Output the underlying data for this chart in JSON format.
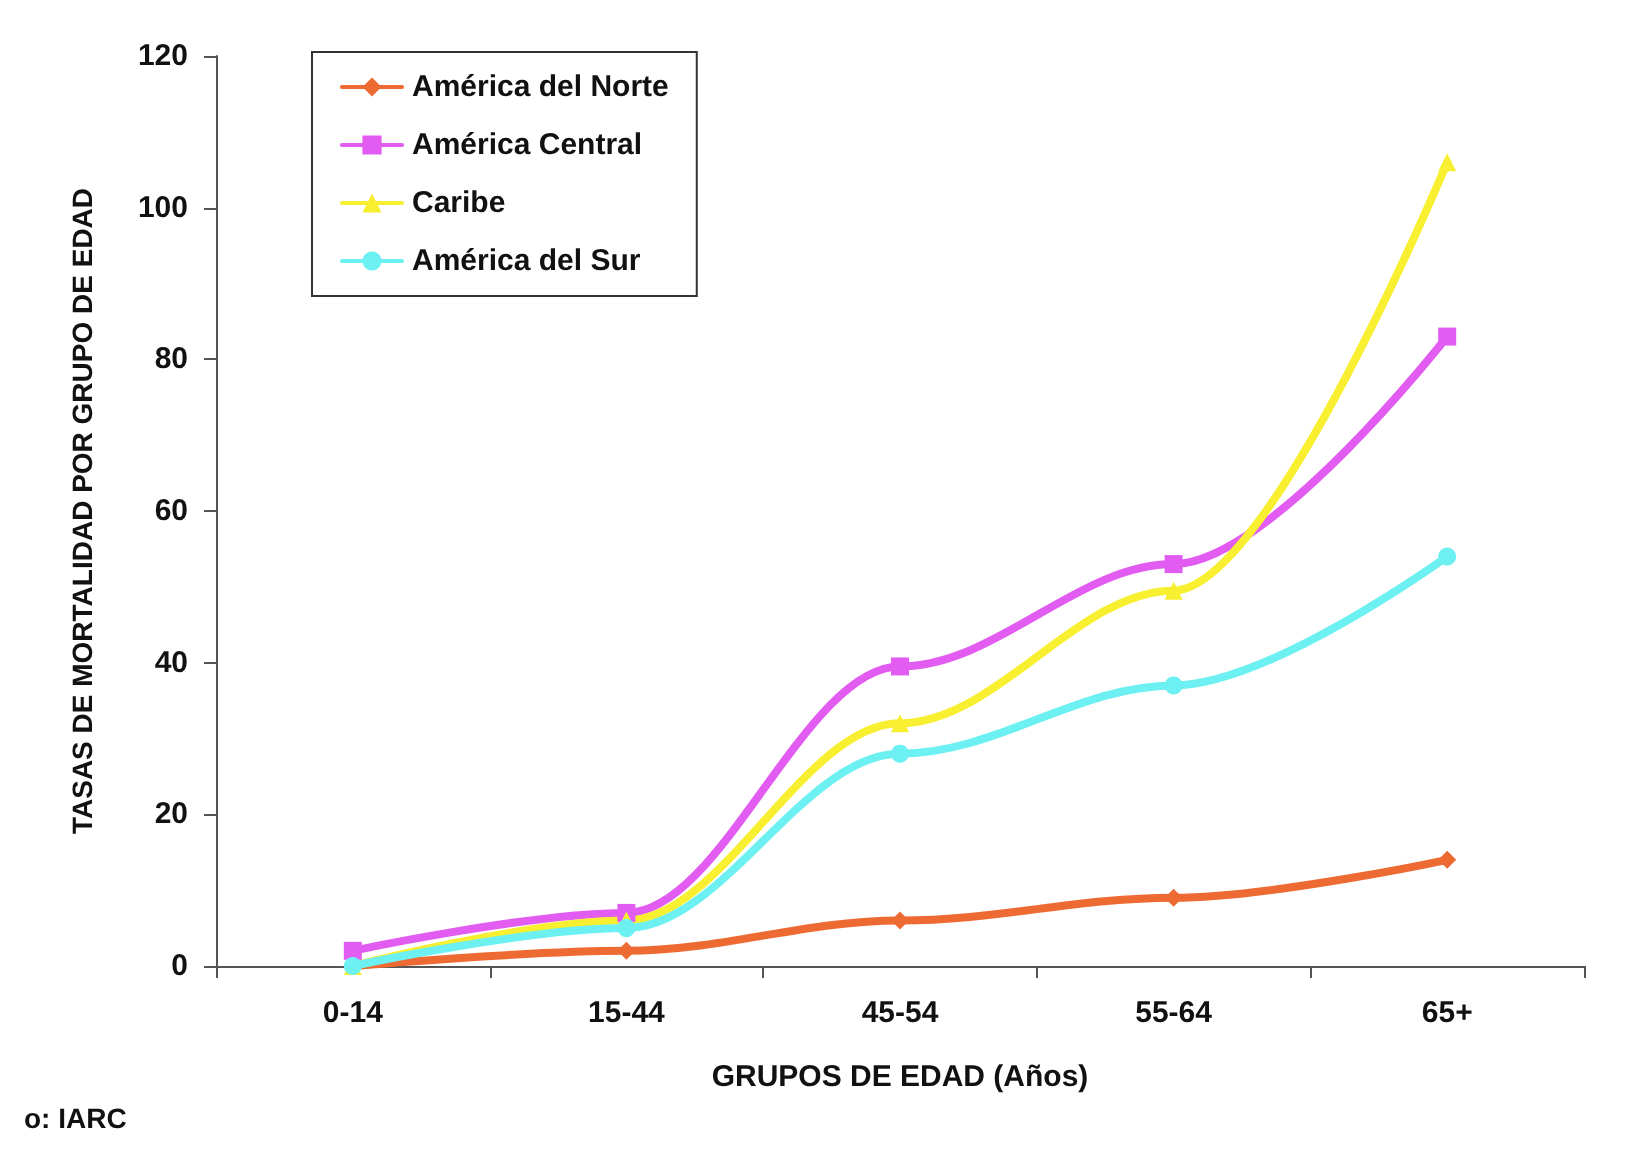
{
  "chart_data": {
    "type": "line",
    "xlabel": "GRUPOS DE EDAD (Años)",
    "ylabel": "TASAS DE MORTALIDAD POR GRUPO DE EDAD",
    "categories": [
      "0-14",
      "15-44",
      "45-54",
      "55-64",
      "65+"
    ],
    "series": [
      {
        "name": "América del Norte",
        "color": "#ee6a33",
        "marker": "diamond",
        "values": [
          0,
          2,
          6,
          9,
          14
        ]
      },
      {
        "name": "América Central",
        "color": "#e35cf2",
        "marker": "square",
        "values": [
          2,
          7,
          39.5,
          53,
          83
        ]
      },
      {
        "name": "Caribe",
        "color": "#f7ef30",
        "marker": "triangle",
        "values": [
          0,
          6,
          32,
          49.5,
          106
        ]
      },
      {
        "name": "América del Sur",
        "color": "#6cf0f2",
        "marker": "circle",
        "values": [
          0,
          5,
          28,
          37,
          54
        ]
      }
    ],
    "ylim": [
      0,
      120
    ],
    "yticks": [
      0,
      20,
      40,
      60,
      80,
      100,
      120
    ],
    "grid": false,
    "legend": "top left",
    "annotations": [
      "o: IARC"
    ]
  }
}
